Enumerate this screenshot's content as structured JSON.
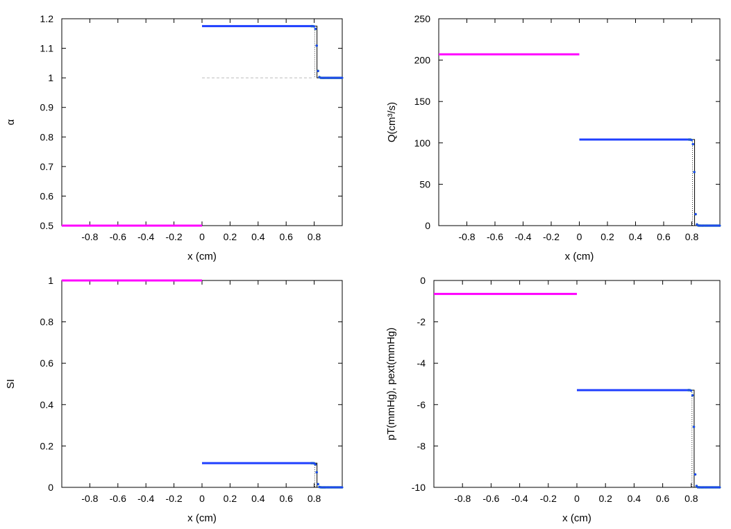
{
  "chart_data": [
    {
      "id": "alpha",
      "type": "line",
      "xlabel": "x (cm)",
      "ylabel": "α",
      "xlim": [
        -1,
        1
      ],
      "ylim": [
        0.5,
        1.2
      ],
      "xticks": [
        -0.8,
        -0.6,
        -0.4,
        -0.2,
        0,
        0.2,
        0.4,
        0.6,
        0.8
      ],
      "xtick_labels": [
        "-0.8",
        "-0.6",
        "-0.4",
        "-0.2",
        "0",
        "0.2",
        "0.4",
        "0.6",
        "0.8"
      ],
      "yticks": [
        0.5,
        0.6,
        0.7,
        0.8,
        0.9,
        1,
        1.1,
        1.2
      ],
      "ytick_labels": [
        "0.5",
        "0.6",
        "0.7",
        "0.8",
        "0.9",
        "1",
        "1.1",
        "1.2"
      ],
      "initial": {
        "x0": -1,
        "x1": 0,
        "value": 0.5,
        "color": "#ff00ff"
      },
      "reference_dashed": {
        "x0": 0,
        "x1": 0.8,
        "value": 1.0,
        "color": "#bbbbbb"
      },
      "wave": {
        "left": 1.175,
        "right": 1.0,
        "front": 0.82,
        "color": "#1f3fff",
        "color2": "#22aa44"
      }
    },
    {
      "id": "Q",
      "type": "line",
      "xlabel": "x (cm)",
      "ylabel": "Q(cm³/s)",
      "xlim": [
        -1,
        1
      ],
      "ylim": [
        0,
        250
      ],
      "xticks": [
        -0.8,
        -0.6,
        -0.4,
        -0.2,
        0,
        0.2,
        0.4,
        0.6,
        0.8
      ],
      "xtick_labels": [
        "-0.8",
        "-0.6",
        "-0.4",
        "-0.2",
        "0",
        "0.2",
        "0.4",
        "0.6",
        "0.8"
      ],
      "yticks": [
        0,
        50,
        100,
        150,
        200,
        250
      ],
      "ytick_labels": [
        "0",
        "50",
        "100",
        "150",
        "200",
        "250"
      ],
      "initial": {
        "x0": -1,
        "x1": 0,
        "value": 207,
        "color": "#ff00ff"
      },
      "wave": {
        "left": 104,
        "right": 0,
        "front": 0.82,
        "color": "#1f3fff",
        "color2": "#22aa44"
      }
    },
    {
      "id": "SI",
      "type": "line",
      "xlabel": "x (cm)",
      "ylabel": "SI",
      "xlim": [
        -1,
        1
      ],
      "ylim": [
        0,
        1
      ],
      "xticks": [
        -0.8,
        -0.6,
        -0.4,
        -0.2,
        0,
        0.2,
        0.4,
        0.6,
        0.8
      ],
      "xtick_labels": [
        "-0.8",
        "-0.6",
        "-0.4",
        "-0.2",
        "0",
        "0.2",
        "0.4",
        "0.6",
        "0.8"
      ],
      "yticks": [
        0,
        0.2,
        0.4,
        0.6,
        0.8,
        1
      ],
      "ytick_labels": [
        "0",
        "0.2",
        "0.4",
        "0.6",
        "0.8",
        "1"
      ],
      "initial": {
        "x0": -1,
        "x1": 0,
        "value": 1.0,
        "color": "#ff00ff"
      },
      "wave": {
        "left": 0.117,
        "right": 0,
        "front": 0.82,
        "color": "#1f3fff",
        "color2": "#22aa44"
      }
    },
    {
      "id": "pT",
      "type": "line",
      "xlabel": "x (cm)",
      "ylabel": "pT(mmHg), pext(mmHg)",
      "xlim": [
        -1,
        1
      ],
      "ylim": [
        -10,
        0
      ],
      "xticks": [
        -0.8,
        -0.6,
        -0.4,
        -0.2,
        0,
        0.2,
        0.4,
        0.6,
        0.8
      ],
      "xtick_labels": [
        "-0.8",
        "-0.6",
        "-0.4",
        "-0.2",
        "0",
        "0.2",
        "0.4",
        "0.6",
        "0.8"
      ],
      "yticks": [
        -10,
        -8,
        -6,
        -4,
        -2,
        0
      ],
      "ytick_labels": [
        "-10",
        "-8",
        "-6",
        "-4",
        "-2",
        "0"
      ],
      "initial": {
        "x0": -1,
        "x1": 0,
        "value": -0.65,
        "color": "#ff00ff"
      },
      "wave": {
        "left": -5.3,
        "right": -10,
        "front": 0.82,
        "color": "#1f3fff",
        "color2": "#22aa44"
      }
    }
  ]
}
